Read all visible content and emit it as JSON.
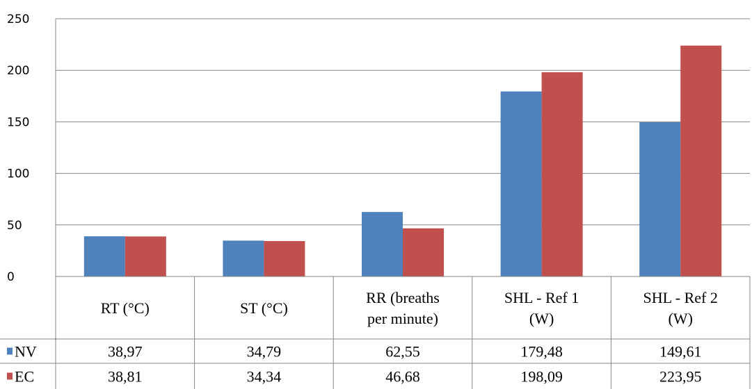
{
  "chart_data": {
    "type": "bar",
    "categories": [
      [
        "RT (°C)"
      ],
      [
        "ST (°C)"
      ],
      [
        "RR (breaths",
        "per minute)"
      ],
      [
        "SHL - Ref 1",
        "(W)"
      ],
      [
        "SHL - Ref 2",
        "(W)"
      ]
    ],
    "series": [
      {
        "name": "NV",
        "color": "#4F81BD",
        "values": [
          38.97,
          34.79,
          62.55,
          179.48,
          149.61
        ],
        "labels": [
          "38,97",
          "34,79",
          "62,55",
          "179,48",
          "149,61"
        ]
      },
      {
        "name": "EC",
        "color": "#C0504D",
        "values": [
          38.81,
          34.34,
          46.68,
          198.09,
          223.95
        ],
        "labels": [
          "38,81",
          "34,34",
          "46,68",
          "198,09",
          "223,95"
        ]
      }
    ],
    "ylim": [
      0,
      250
    ],
    "yticks": [
      0,
      50,
      100,
      150,
      200,
      250
    ],
    "grid": true,
    "legend": "data-table"
  }
}
